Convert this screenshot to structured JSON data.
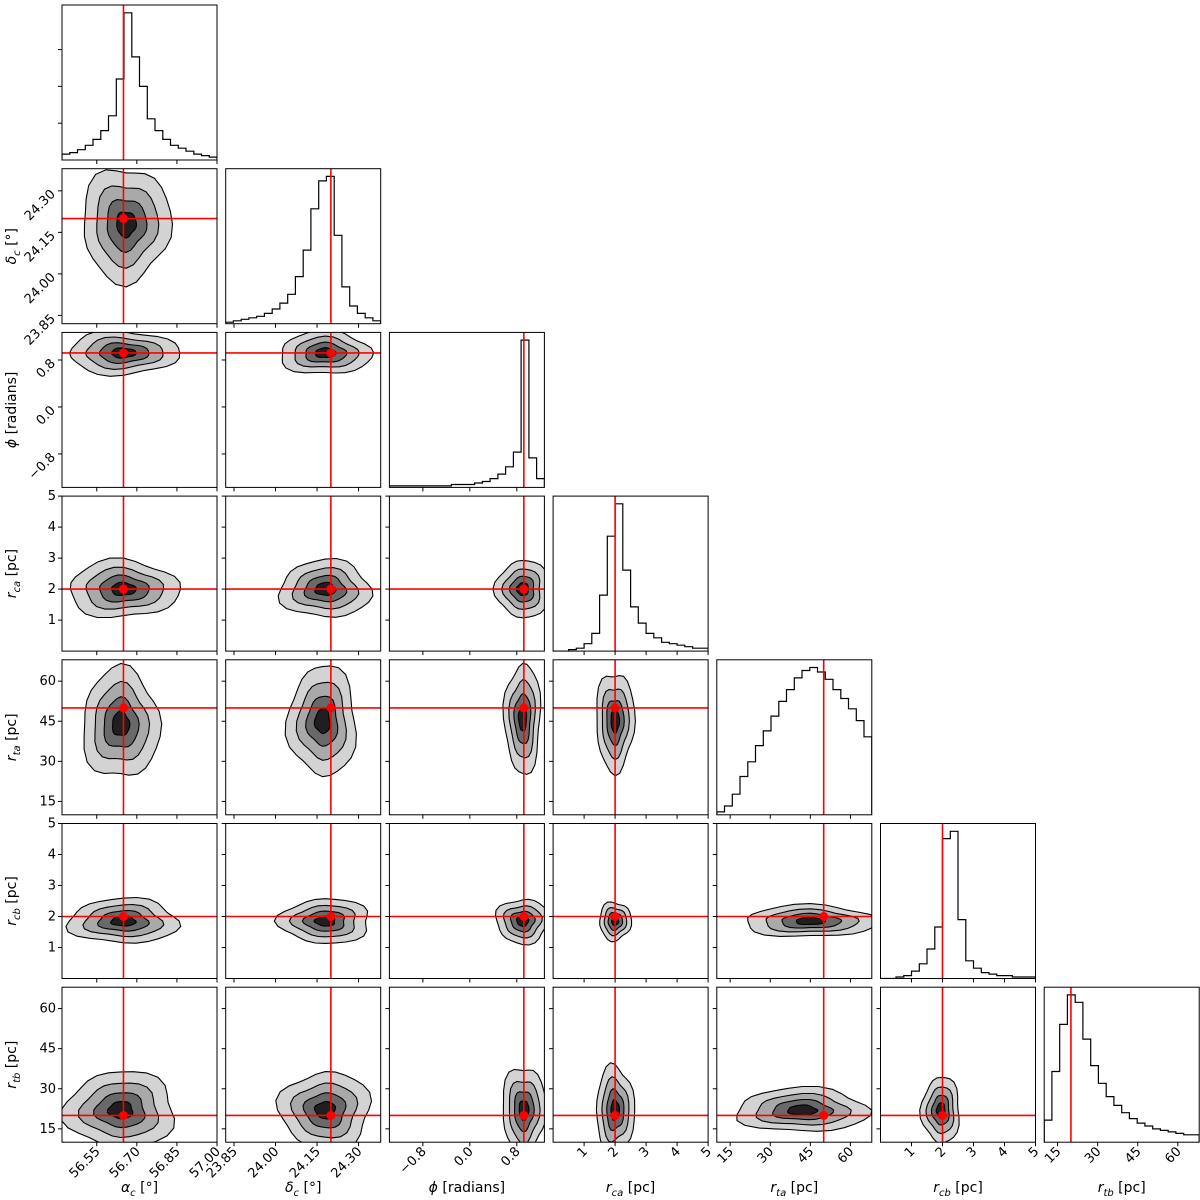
{
  "chart_data": {
    "type": "corner",
    "title": "",
    "truth_color": "#ff0000",
    "parameters": [
      {
        "key": "alpha_c",
        "base": "α",
        "sub": "c",
        "unit": "[°]",
        "range": [
          56.42,
          57.0
        ],
        "ticks": [
          56.55,
          56.7,
          56.85,
          57.0
        ],
        "tick_labels": [
          "56.55",
          "56.70",
          "56.85",
          "57.00"
        ],
        "truth": 56.65
      },
      {
        "key": "delta_c",
        "base": "δ",
        "sub": "c",
        "unit": "[°]",
        "range": [
          23.82,
          24.38
        ],
        "ticks": [
          23.85,
          24.0,
          24.15,
          24.3
        ],
        "tick_labels": [
          "23.85",
          "24.00",
          "24.15",
          "24.30"
        ],
        "truth": 24.2
      },
      {
        "key": "phi",
        "base": "ϕ",
        "sub": "",
        "unit": "[radians]",
        "range": [
          -1.37,
          1.27
        ],
        "ticks": [
          -0.8,
          0.0,
          0.8
        ],
        "tick_labels": [
          "−0.8",
          "0.0",
          "0.8"
        ],
        "truth": 0.92
      },
      {
        "key": "r_ca",
        "base": "r",
        "sub": "ca",
        "unit": "[pc]",
        "range": [
          0.0,
          5.0
        ],
        "ticks": [
          1,
          2,
          3,
          4,
          5
        ],
        "tick_labels": [
          "1",
          "2",
          "3",
          "4",
          "5"
        ],
        "truth": 2.0
      },
      {
        "key": "r_ta",
        "base": "r",
        "sub": "ta",
        "unit": "[pc]",
        "range": [
          10.0,
          68.0
        ],
        "ticks": [
          15,
          30,
          45,
          60
        ],
        "tick_labels": [
          "15",
          "30",
          "45",
          "60"
        ],
        "truth": 50.0
      },
      {
        "key": "r_cb",
        "base": "r",
        "sub": "cb",
        "unit": "[pc]",
        "range": [
          0.0,
          5.0
        ],
        "ticks": [
          1,
          2,
          3,
          4,
          5
        ],
        "tick_labels": [
          "1",
          "2",
          "3",
          "4",
          "5"
        ],
        "truth": 2.0
      },
      {
        "key": "r_tb",
        "base": "r",
        "sub": "tb",
        "unit": "[pc]",
        "range": [
          10.0,
          68.0
        ],
        "ticks": [
          15,
          30,
          45,
          60
        ],
        "tick_labels": [
          "15",
          "30",
          "45",
          "60"
        ],
        "truth": 20.0
      }
    ],
    "histograms": [
      {
        "param": "alpha_c",
        "counts": [
          0.04,
          0.05,
          0.07,
          0.1,
          0.14,
          0.2,
          0.3,
          0.55,
          1.0,
          0.7,
          0.5,
          0.28,
          0.2,
          0.14,
          0.1,
          0.08,
          0.06,
          0.04,
          0.03,
          0.02
        ]
      },
      {
        "param": "delta_c",
        "counts": [
          0.01,
          0.02,
          0.03,
          0.04,
          0.05,
          0.07,
          0.1,
          0.14,
          0.2,
          0.32,
          0.5,
          0.78,
          0.97,
          1.0,
          0.6,
          0.25,
          0.12,
          0.07,
          0.04,
          0.02
        ]
      },
      {
        "param": "phi",
        "counts": [
          0.01,
          0.01,
          0.01,
          0.01,
          0.01,
          0.01,
          0.01,
          0.01,
          0.02,
          0.02,
          0.02,
          0.03,
          0.04,
          0.06,
          0.09,
          0.14,
          0.24,
          1.0,
          0.2,
          0.06
        ]
      },
      {
        "param": "r_ca",
        "counts": [
          0.0,
          0.0,
          0.01,
          0.02,
          0.05,
          0.12,
          0.38,
          0.78,
          1.0,
          0.55,
          0.3,
          0.19,
          0.12,
          0.09,
          0.06,
          0.05,
          0.04,
          0.03,
          0.02,
          0.02
        ]
      },
      {
        "param": "r_ta",
        "counts": [
          0.02,
          0.06,
          0.14,
          0.26,
          0.36,
          0.47,
          0.57,
          0.67,
          0.77,
          0.85,
          0.93,
          0.98,
          1.0,
          0.97,
          0.92,
          0.85,
          0.79,
          0.72,
          0.64,
          0.53
        ]
      },
      {
        "param": "r_cb",
        "counts": [
          0.0,
          0.0,
          0.01,
          0.02,
          0.05,
          0.1,
          0.2,
          0.35,
          0.95,
          1.0,
          0.4,
          0.12,
          0.07,
          0.04,
          0.03,
          0.02,
          0.02,
          0.01,
          0.01,
          0.01
        ]
      },
      {
        "param": "r_tb",
        "counts": [
          0.15,
          0.48,
          0.8,
          1.0,
          0.95,
          0.7,
          0.52,
          0.4,
          0.31,
          0.25,
          0.2,
          0.16,
          0.13,
          0.11,
          0.09,
          0.08,
          0.07,
          0.06,
          0.05,
          0.05
        ]
      }
    ],
    "densities_2d": [
      {
        "x": "alpha_c",
        "y": "delta_c",
        "mode_x": 56.66,
        "mode_y": 24.18,
        "sigma_x": 0.08,
        "sigma_y": 0.1
      },
      {
        "x": "alpha_c",
        "y": "phi",
        "mode_x": 56.65,
        "mode_y": 0.92,
        "sigma_x": 0.1,
        "sigma_y": 0.18
      },
      {
        "x": "delta_c",
        "y": "phi",
        "mode_x": 24.18,
        "mode_y": 0.92,
        "sigma_x": 0.08,
        "sigma_y": 0.18
      },
      {
        "x": "alpha_c",
        "y": "r_ca",
        "mode_x": 56.65,
        "mode_y": 2.0,
        "sigma_x": 0.1,
        "sigma_y": 0.45
      },
      {
        "x": "delta_c",
        "y": "r_ca",
        "mode_x": 24.18,
        "mode_y": 2.0,
        "sigma_x": 0.08,
        "sigma_y": 0.45
      },
      {
        "x": "phi",
        "y": "r_ca",
        "mode_x": 0.9,
        "mode_y": 2.0,
        "sigma_x": 0.22,
        "sigma_y": 0.45
      },
      {
        "x": "r_ca",
        "y": "r_ta",
        "mode_x": 2.0,
        "mode_y": 45.0,
        "sigma_x": 0.3,
        "sigma_y": 9.0
      },
      {
        "x": "alpha_c",
        "y": "r_ta",
        "mode_x": 56.64,
        "mode_y": 44.0,
        "sigma_x": 0.07,
        "sigma_y": 10.0
      },
      {
        "x": "delta_c",
        "y": "r_ta",
        "mode_x": 24.17,
        "mode_y": 45.0,
        "sigma_x": 0.06,
        "sigma_y": 10.0
      },
      {
        "x": "phi",
        "y": "r_ta",
        "mode_x": 0.9,
        "mode_y": 46.0,
        "sigma_x": 0.15,
        "sigma_y": 10.0
      },
      {
        "x": "alpha_c",
        "y": "r_cb",
        "mode_x": 56.65,
        "mode_y": 1.85,
        "sigma_x": 0.1,
        "sigma_y": 0.35
      },
      {
        "x": "delta_c",
        "y": "r_cb",
        "mode_x": 24.18,
        "mode_y": 1.85,
        "sigma_x": 0.08,
        "sigma_y": 0.35
      },
      {
        "x": "phi",
        "y": "r_cb",
        "mode_x": 0.9,
        "mode_y": 1.85,
        "sigma_x": 0.22,
        "sigma_y": 0.35
      },
      {
        "x": "r_ca",
        "y": "r_cb",
        "mode_x": 2.0,
        "mode_y": 1.85,
        "sigma_x": 0.25,
        "sigma_y": 0.3
      },
      {
        "x": "r_ta",
        "y": "r_cb",
        "mode_x": 45.0,
        "mode_y": 1.85,
        "sigma_x": 12.0,
        "sigma_y": 0.25
      },
      {
        "x": "alpha_c",
        "y": "r_tb",
        "mode_x": 56.64,
        "mode_y": 22.0,
        "sigma_x": 0.1,
        "sigma_y": 7.0
      },
      {
        "x": "delta_c",
        "y": "r_tb",
        "mode_x": 24.18,
        "mode_y": 22.0,
        "sigma_x": 0.08,
        "sigma_y": 7.0
      },
      {
        "x": "phi",
        "y": "r_tb",
        "mode_x": 0.92,
        "mode_y": 22.0,
        "sigma_x": 0.18,
        "sigma_y": 8.0
      },
      {
        "x": "r_ca",
        "y": "r_tb",
        "mode_x": 2.0,
        "mode_y": 22.0,
        "sigma_x": 0.3,
        "sigma_y": 8.0
      },
      {
        "x": "r_ta",
        "y": "r_tb",
        "mode_x": 42.0,
        "mode_y": 22.0,
        "sigma_x": 12.0,
        "sigma_y": 4.0
      },
      {
        "x": "r_cb",
        "y": "r_tb",
        "mode_x": 1.95,
        "mode_y": 22.0,
        "sigma_x": 0.3,
        "sigma_y": 6.0
      }
    ],
    "contour_levels": [
      0.12,
      0.35,
      0.65,
      0.9
    ],
    "contour_fills": [
      "#d3d3d3",
      "#a9a9a9",
      "#696969",
      "#1f1f1f"
    ]
  }
}
